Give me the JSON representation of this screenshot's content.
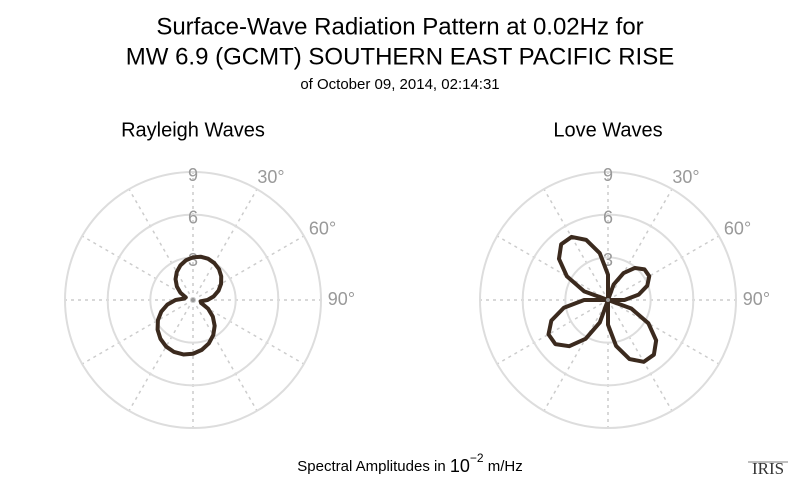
{
  "title": [
    "Surface-Wave Radiation Pattern at 0.02Hz for",
    "MW 6.9 (GCMT) SOUTHERN EAST PACIFIC RISE"
  ],
  "subtitle": "of October 09, 2014, 02:14:31",
  "footer": {
    "text": "Spectral Amplitudes in",
    "base": "10",
    "superscript": "−2",
    "unit": "m/Hz"
  },
  "logo": "IRIS",
  "chart_data": [
    {
      "type": "polar",
      "title": "Rayleigh Waves",
      "color": "#3b2a1e",
      "x": [
        0,
        10,
        20,
        30,
        40,
        50,
        60,
        70,
        80,
        90,
        100,
        110,
        120,
        130,
        140,
        150,
        160,
        170,
        180,
        190,
        200,
        210,
        220,
        230,
        240,
        250,
        260,
        270,
        280,
        290,
        300,
        310,
        320,
        330,
        340,
        350
      ],
      "values": [
        3.0,
        3.09,
        3.09,
        3.0,
        2.84,
        2.59,
        2.28,
        1.91,
        1.48,
        1.02,
        0.54,
        0.61,
        1.23,
        1.82,
        2.37,
        2.85,
        3.25,
        3.56,
        3.78,
        3.89,
        3.89,
        3.78,
        3.56,
        3.25,
        2.85,
        2.37,
        1.82,
        1.23,
        0.61,
        0.54,
        1.02,
        1.48,
        1.91,
        2.28,
        2.59,
        2.84
      ],
      "ylim": [
        0,
        9
      ],
      "yticks": [
        3,
        6,
        9
      ],
      "xticks": [
        {
          "value": 30,
          "label": "30°"
        },
        {
          "value": 60,
          "label": "60°"
        },
        {
          "value": 90,
          "label": "90°"
        }
      ]
    },
    {
      "type": "polar",
      "title": "Love Waves",
      "color": "#3b2a1e",
      "x": [
        0,
        10,
        20,
        30,
        40,
        50,
        60,
        70,
        80,
        90,
        100,
        110,
        120,
        130,
        140,
        150,
        160,
        170,
        180,
        190,
        200,
        210,
        220,
        230,
        240,
        250,
        260,
        270,
        280,
        290,
        300,
        310,
        320,
        330,
        340,
        350
      ],
      "values": [
        1.78,
        0,
        1.16,
        2.19,
        2.94,
        3.35,
        3.35,
        2.94,
        2.19,
        1.16,
        0,
        1.74,
        3.28,
        4.42,
        5.02,
        5.02,
        4.42,
        3.28,
        1.74,
        0,
        1.68,
        3.15,
        4.24,
        4.83,
        4.83,
        4.24,
        3.15,
        1.68,
        0,
        1.78,
        3.34,
        4.5,
        5.12,
        5.12,
        4.5,
        3.34
      ],
      "ylim": [
        0,
        9
      ],
      "yticks": [
        3,
        6,
        9
      ],
      "xticks": [
        {
          "value": 30,
          "label": "30°"
        },
        {
          "value": 60,
          "label": "60°"
        },
        {
          "value": 90,
          "label": "90°"
        }
      ]
    }
  ]
}
